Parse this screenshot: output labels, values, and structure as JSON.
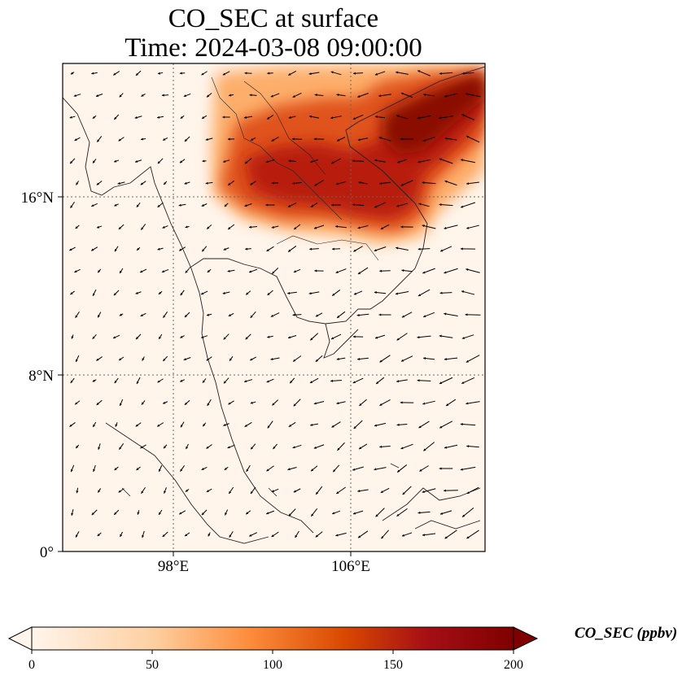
{
  "title": {
    "line1": "CO_SEC at surface",
    "line2": "Time: 2024-03-08 09:00:00"
  },
  "map": {
    "lon_range": [
      93,
      112
    ],
    "lat_range": [
      0,
      22
    ],
    "lon_ticks": [
      {
        "value": 98,
        "label": "98°E"
      },
      {
        "value": 106,
        "label": "106°E"
      }
    ],
    "lat_ticks": [
      {
        "value": 0,
        "label": "0°"
      },
      {
        "value": 8,
        "label": "8°N"
      },
      {
        "value": 16,
        "label": "16°N"
      }
    ],
    "gridlines": "dotted",
    "field": "CO_SEC",
    "units": "ppbv",
    "vectors": "wind arrows"
  },
  "colorbar": {
    "label": "CO_SEC (ppbv)",
    "range": [
      0,
      200
    ],
    "ticks": [
      {
        "value": 0,
        "label": "0"
      },
      {
        "value": 50,
        "label": "50"
      },
      {
        "value": 100,
        "label": "100"
      },
      {
        "value": 150,
        "label": "150"
      },
      {
        "value": 200,
        "label": "200"
      }
    ],
    "colors": [
      "#fff5eb",
      "#fdd0a2",
      "#fd8d3c",
      "#d94801",
      "#a50f15",
      "#7f0000"
    ],
    "extend": "both"
  }
}
